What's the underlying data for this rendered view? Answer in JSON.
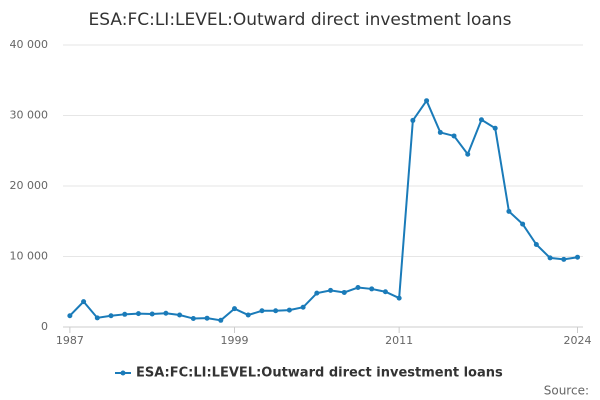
{
  "chart_data": {
    "type": "line",
    "title": "ESA:FC:LI:LEVEL:Outward direct investment loans",
    "x": [
      1987,
      1988,
      1989,
      1990,
      1991,
      1992,
      1993,
      1994,
      1995,
      1996,
      1997,
      1998,
      1999,
      2000,
      2001,
      2002,
      2003,
      2004,
      2005,
      2006,
      2007,
      2008,
      2009,
      2010,
      2011,
      2012,
      2013,
      2014,
      2015,
      2016,
      2017,
      2018,
      2019,
      2020,
      2021,
      2022,
      2023,
      2024
    ],
    "series": [
      {
        "name": "ESA:FC:LI:LEVEL:Outward direct investment loans",
        "color": "#1a7bb9",
        "values": [
          1600,
          3600,
          1300,
          1600,
          1800,
          1900,
          1850,
          1950,
          1700,
          1200,
          1250,
          950,
          2600,
          1700,
          2300,
          2300,
          2400,
          2800,
          4800,
          5200,
          4900,
          5600,
          5400,
          5000,
          4100,
          29300,
          32100,
          27600,
          27100,
          24500,
          29400,
          28200,
          16400,
          14600,
          11700,
          9800,
          9600,
          9900
        ]
      }
    ],
    "xlim": [
      1986.5,
      2024.4
    ],
    "xticks": [
      1987,
      1999,
      2011,
      2024
    ],
    "ylim": [
      0,
      40000
    ],
    "yticks": [
      0,
      {
        "value": 10000,
        "label": "10 000"
      },
      {
        "value": 20000,
        "label": "20 000"
      },
      {
        "value": 30000,
        "label": "30 000"
      },
      {
        "value": 40000,
        "label": "40 000"
      }
    ],
    "grid": true,
    "legend": "bottom",
    "source_label": "Source:"
  }
}
